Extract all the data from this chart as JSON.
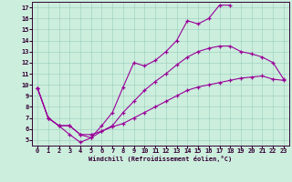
{
  "xlabel": "Windchill (Refroidissement éolien,°C)",
  "bg_color": "#cceedd",
  "grid_color": "#99ccbb",
  "line_color": "#990099",
  "linewidth": 0.8,
  "markersize": 3.0,
  "xlim": [
    -0.5,
    23.5
  ],
  "ylim": [
    4.5,
    17.5
  ],
  "xticks": [
    0,
    1,
    2,
    3,
    4,
    5,
    6,
    7,
    8,
    9,
    10,
    11,
    12,
    13,
    14,
    15,
    16,
    17,
    18,
    19,
    20,
    21,
    22,
    23
  ],
  "yticks": [
    5,
    6,
    7,
    8,
    9,
    10,
    11,
    12,
    13,
    14,
    15,
    16,
    17
  ],
  "line1_x": [
    0,
    1,
    2,
    3,
    4,
    5,
    6,
    7,
    8,
    9,
    10,
    11,
    12,
    13,
    14,
    15,
    16,
    17,
    18
  ],
  "line1_y": [
    9.7,
    7.0,
    6.3,
    5.5,
    4.8,
    5.2,
    6.3,
    7.5,
    9.8,
    12.0,
    11.7,
    12.2,
    13.0,
    14.0,
    15.8,
    15.5,
    16.0,
    17.2,
    17.2
  ],
  "line2_x": [
    0,
    1,
    2,
    3,
    4,
    5,
    6,
    7,
    8,
    9,
    10,
    11,
    12,
    13,
    14,
    15,
    16,
    17,
    18,
    19,
    20,
    21,
    22,
    23
  ],
  "line2_y": [
    9.7,
    7.0,
    6.3,
    6.3,
    5.5,
    5.2,
    5.8,
    6.3,
    7.5,
    8.5,
    9.5,
    10.3,
    11.0,
    11.8,
    12.5,
    13.0,
    13.3,
    13.5,
    13.5,
    13.0,
    12.8,
    12.5,
    12.0,
    10.5
  ],
  "line3_x": [
    0,
    1,
    2,
    3,
    4,
    5,
    6,
    7,
    8,
    9,
    10,
    11,
    12,
    13,
    14,
    15,
    16,
    17,
    18,
    19,
    20,
    21,
    22,
    23
  ],
  "line3_y": [
    9.7,
    7.0,
    6.3,
    6.3,
    5.5,
    5.5,
    5.8,
    6.2,
    6.5,
    7.0,
    7.5,
    8.0,
    8.5,
    9.0,
    9.5,
    9.8,
    10.0,
    10.2,
    10.4,
    10.6,
    10.7,
    10.8,
    10.5,
    10.4
  ]
}
